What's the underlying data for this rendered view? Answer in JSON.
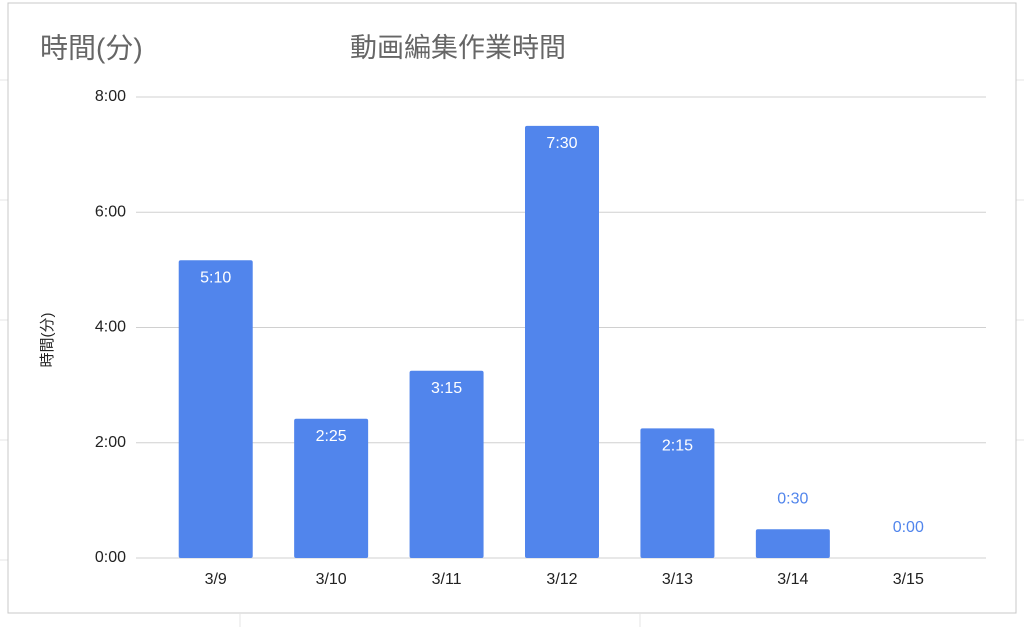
{
  "chart_data": {
    "type": "bar",
    "title": "動画編集作業時間",
    "annotations": [
      "時間(分)"
    ],
    "y_label": "時間(分)",
    "categories": [
      "3/9",
      "3/10",
      "3/11",
      "3/12",
      "3/13",
      "3/14",
      "3/15"
    ],
    "values": [
      5.166667,
      2.416667,
      3.25,
      7.5,
      2.25,
      0.5,
      0
    ],
    "value_labels": [
      "5:10",
      "2:25",
      "3:15",
      "7:30",
      "2:15",
      "0:30",
      "0:00"
    ],
    "color": "#5185ec",
    "ylim": [
      0,
      8
    ],
    "yticks": [
      {
        "value": 0,
        "label": "0:00"
      },
      {
        "value": 2,
        "label": "2:00"
      },
      {
        "value": 4,
        "label": "4:00"
      },
      {
        "value": 6,
        "label": "6:00"
      },
      {
        "value": 8,
        "label": "8:00"
      }
    ],
    "grid": true
  }
}
